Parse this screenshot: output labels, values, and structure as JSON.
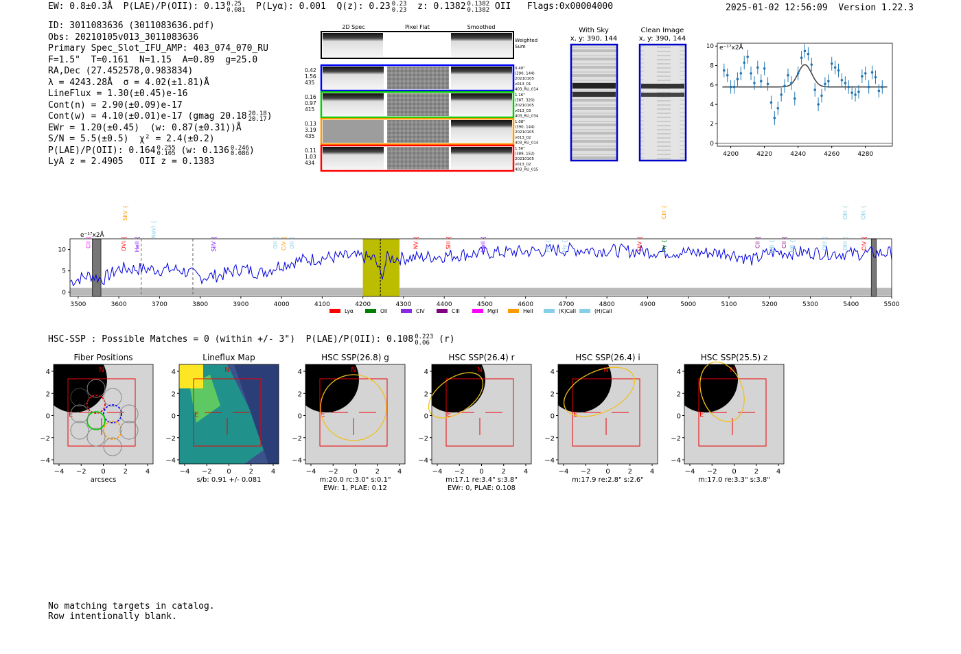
{
  "header": {
    "ew": "EW: 0.8±0.3Å",
    "plae": "P(LAE)/P(OII): 0.13",
    "plae_hi": "0.25",
    "plae_lo": "0.081",
    "plya": "P(Lyα): 0.001",
    "qz": "Q(z): 0.23",
    "qz_hi": "0.23",
    "qz_lo": "0.23",
    "z": "z: 0.1382",
    "z_hi": "0.1382",
    "z_lo": "0.1382",
    "z_line": "OII",
    "flags": "Flags:0x00004000",
    "timestamp": "2025-01-02 12:56:09",
    "version": "Version 1.22.3"
  },
  "info": {
    "id": "ID: 3011083636 (3011083636.pdf)",
    "obs": "Obs: 20210105v013_3011083636",
    "primary": "Primary Spec_Slot_IFU_AMP: 403_074_070_RU",
    "params": "F=1.5\"  T=0.161  N=1.15  A=0.89  g=25.0",
    "radec": "RA,Dec (27.452578,0.983834)",
    "lambda": "λ = 4243.28Å  σ = 4.02(±1.81)Å",
    "lineflux": "LineFlux = 1.30(±0.45)e-16",
    "contn": "Cont(n) = 2.90(±0.09)e-17",
    "contw": "Cont(w) = 4.10(±0.01)e-17 (gmag 20.18",
    "contw_hi": "20.18",
    "contw_lo": "20.17",
    "ewr": "EWr = 1.20(±0.45)  (w: 0.87(±0.31))Å",
    "sn": "S/N = 5.5(±0.5)  χ² = 2.4(±0.2)",
    "plae": "P(LAE)/P(OII): 0.164",
    "plae_hi": "0.255",
    "plae_lo": "0.105",
    "plae_w": "(w: 0.136",
    "plae_w_hi": "0.246",
    "plae_w_lo": "0.086",
    "lya": "LyA z = 2.4905   OII z = 0.1383"
  },
  "cutouts": {
    "col_labels": [
      "2D Spec",
      "Pixel Flat",
      "Smoothed"
    ],
    "weighted_sum": "Weighted\nSum",
    "rows": [
      {
        "left": [
          "0.42",
          "1.56",
          "435"
        ],
        "right": [
          "0.40\"",
          "(390, 144)",
          "20210105",
          "v013_01",
          "403_RU_014"
        ],
        "color": "#0000ff"
      },
      {
        "left": [
          "0.16",
          "0.97",
          "415"
        ],
        "right": [
          "1.16\"",
          "(387, 320)",
          "20210105",
          "v013_03",
          "403_RU_034"
        ],
        "color": "#00cc00"
      },
      {
        "left": [
          "0.13",
          "3.19",
          "435"
        ],
        "right": [
          "1.08\"",
          "(390, 144)",
          "20210105",
          "v013_02",
          "403_RU_014"
        ],
        "color": "#ff9900"
      },
      {
        "left": [
          "0.11",
          "1.03",
          "434"
        ],
        "right": [
          "1.56\"",
          "(389, 152)",
          "20210105",
          "v013_02",
          "403_RU_015"
        ],
        "color": "#ff0000"
      }
    ],
    "with_sky": "With Sky",
    "clean_image": "Clean Image",
    "xy": "x, y: 390, 144"
  },
  "zoom_chart": {
    "type": "scatter",
    "unit_label": "e⁻¹⁷x2Å",
    "xticks": [
      4200,
      4220,
      4240,
      4260,
      4280
    ],
    "yticks": [
      0,
      2,
      4,
      6,
      8,
      10
    ],
    "xlim": [
      4192,
      4296
    ],
    "ylim": [
      -0.3,
      10.3
    ]
  },
  "chart_data": [
    {
      "type": "scatter",
      "title": "",
      "ylabel": "e⁻¹⁷x2Å",
      "x": [
        4196,
        4198,
        4200,
        4202,
        4204,
        4206,
        4208,
        4210,
        4212,
        4214,
        4216,
        4218,
        4220,
        4222,
        4224,
        4226,
        4228,
        4230,
        4232,
        4234,
        4236,
        4238,
        4240,
        4242,
        4244,
        4246,
        4248,
        4250,
        4252,
        4254,
        4256,
        4258,
        4260,
        4262,
        4264,
        4266,
        4268,
        4270,
        4272,
        4274,
        4276,
        4278,
        4280,
        4282,
        4284,
        4286,
        4288,
        4290
      ],
      "y": [
        7.5,
        7.0,
        5.8,
        5.8,
        6.6,
        7.2,
        8.3,
        8.9,
        7.2,
        6.2,
        7.8,
        6.4,
        7.7,
        6.1,
        4.2,
        2.6,
        3.6,
        5.0,
        5.9,
        7.0,
        6.2,
        4.6,
        7.2,
        8.8,
        9.5,
        9.2,
        8.1,
        5.5,
        4.0,
        4.9,
        6.1,
        6.4,
        8.2,
        7.8,
        7.5,
        6.5,
        6.2,
        5.8,
        5.2,
        5.0,
        5.3,
        6.9,
        7.2,
        5.8,
        7.3,
        6.8,
        5.4,
        5.8
      ],
      "fit_peak": 4244,
      "fit_amp": 2.3,
      "fit_baseline": 5.8,
      "xlim": [
        4192,
        4296
      ],
      "ylim": [
        -0.3,
        10.3
      ]
    },
    {
      "type": "line",
      "title": "",
      "ylabel": "e⁻¹⁷x2Å",
      "xlim": [
        3480,
        5500
      ],
      "ylim": [
        -1,
        12.5
      ],
      "xticks": [
        3500,
        3600,
        3700,
        3800,
        3900,
        4000,
        4100,
        4200,
        4300,
        4400,
        4500,
        4600,
        4700,
        4800,
        4900,
        5000,
        5100,
        5200,
        5300,
        5400,
        5500
      ],
      "yticks": [
        0,
        5,
        10
      ],
      "anchors_x": [
        3480,
        3530,
        3560,
        3600,
        3650,
        3700,
        3750,
        3800,
        3850,
        3900,
        3950,
        4000,
        4050,
        4100,
        4150,
        4200,
        4230,
        4245,
        4260,
        4300,
        4400,
        4500,
        4600,
        4700,
        4800,
        4900,
        5000,
        5100,
        5160,
        5200,
        5300,
        5400,
        5500
      ],
      "anchors_y": [
        2.5,
        4,
        3,
        5.5,
        5.5,
        5.3,
        5.3,
        3.5,
        4,
        5.5,
        4.5,
        6.5,
        7.5,
        8,
        8.3,
        8.2,
        7.8,
        3.5,
        8,
        8,
        8.5,
        9.2,
        9.5,
        10,
        9.8,
        9.5,
        9.3,
        9.2,
        7.5,
        9.3,
        9.3,
        9,
        9.2
      ],
      "highlight_band": [
        4200,
        4290
      ],
      "center_line": 4243,
      "masked_bands": [
        [
          3535,
          3556
        ],
        [
          5450,
          5462
        ]
      ],
      "dashed_lines": [
        3655,
        3782
      ],
      "line_labels": [
        {
          "text": "CII",
          "x": 3530,
          "color": "#ff00ff",
          "row": 2
        },
        {
          "text": "OVI",
          "x": 3617,
          "color": "#ff0000",
          "row": 2
        },
        {
          "text": "HeII",
          "x": 3650,
          "color": "#8000ff",
          "row": 2
        },
        {
          "text": "NeVI",
          "x": 3690,
          "color": "#87ceeb",
          "row": 1
        },
        {
          "text": "SiIV",
          "x": 3620,
          "color": "#ff9900",
          "row": 0
        },
        {
          "text": "SiIV",
          "x": 3838,
          "color": "#8000ff",
          "row": 2
        },
        {
          "text": "OII",
          "x": 3990,
          "color": "#87ceeb",
          "row": 2
        },
        {
          "text": "CIV",
          "x": 4010,
          "color": "#ff9900",
          "row": 2
        },
        {
          "text": "OII",
          "x": 4030,
          "color": "#87ceeb",
          "row": 2
        },
        {
          "text": "NV",
          "x": 4335,
          "color": "#ff0000",
          "row": 2
        },
        {
          "text": "SiII",
          "x": 4415,
          "color": "#ff0000",
          "row": 2
        },
        {
          "text": "HeII",
          "x": 4500,
          "color": "#8000ff",
          "row": 2
        },
        {
          "text": "Hγ",
          "x": 4660,
          "color": "#87ceeb",
          "row": 3
        },
        {
          "text": "Hγ",
          "x": 4700,
          "color": "#87ceeb",
          "row": 3
        },
        {
          "text": "SiIV",
          "x": 4885,
          "color": "#ff0000",
          "row": 2
        },
        {
          "text": "CIII",
          "x": 4945,
          "color": "#ff9900",
          "row": 0
        },
        {
          "text": "Hγ",
          "x": 4945,
          "color": "#008000",
          "row": 3
        },
        {
          "text": "CII",
          "x": 5175,
          "color": "#800080",
          "row": 2
        },
        {
          "text": "Hβ",
          "x": 5210,
          "color": "#87ceeb",
          "row": 3
        },
        {
          "text": "CII",
          "x": 5240,
          "color": "#800080",
          "row": 2
        },
        {
          "text": "Hβ",
          "x": 5260,
          "color": "#87ceeb",
          "row": 3
        },
        {
          "text": "OIII",
          "x": 5340,
          "color": "#87ceeb",
          "row": 2
        },
        {
          "text": "OIII",
          "x": 5390,
          "color": "#87ceeb",
          "row": 0
        },
        {
          "text": "OIII",
          "x": 5435,
          "color": "#87ceeb",
          "row": 0
        },
        {
          "text": "OIII",
          "x": 5390,
          "color": "#87ceeb",
          "row": 2
        },
        {
          "text": "CIV",
          "x": 5437,
          "color": "#ff0000",
          "row": 2
        }
      ],
      "legend": [
        {
          "label": "Lyα",
          "color": "#ff0000"
        },
        {
          "label": "OII",
          "color": "#008000"
        },
        {
          "label": "CIV",
          "color": "#8a2be2"
        },
        {
          "label": "CIII",
          "color": "#800080"
        },
        {
          "label": "MgII",
          "color": "#ff00ff"
        },
        {
          "label": "HeII",
          "color": "#ff9900"
        },
        {
          "label": "(K)CaII",
          "color": "#87ceeb"
        },
        {
          "label": "(H)CaII",
          "color": "#87ceeb"
        }
      ],
      "unit_label": "e⁻¹⁷x2Å"
    }
  ],
  "hsc": {
    "line": "HSC-SSP : Possible Matches = 0 (within +/- 3\")  P(LAE)/P(OII): 0.108",
    "p_hi": "0.223",
    "p_lo": "0.06",
    "band": "(r)",
    "panels": [
      {
        "title": "Fiber Positions",
        "xlabel": "arcsecs",
        "sub2": ""
      },
      {
        "title": "Lineflux Map",
        "xlabel": "s/b: 0.91 +/- 0.081",
        "sub2": ""
      },
      {
        "title": "HSC SSP(26.8) g",
        "xlabel": "m:20.0 rc:3.0\"  s:0.1\"",
        "sub2": "EWr: 1, PLAE: 0.12"
      },
      {
        "title": "HSC SSP(26.4) r",
        "xlabel": "m:17.1  re:3.4\"  s:3.8\"",
        "sub2": "EWr: 0, PLAE: 0.108"
      },
      {
        "title": "HSC SSP(26.4) i",
        "xlabel": "m:17.9  re:2.8\"  s:2.6\"",
        "sub2": ""
      },
      {
        "title": "HSC SSP(25.5) z",
        "xlabel": "m:17.0  re:3.3\"  s:3.8\"",
        "sub2": ""
      }
    ],
    "ticks": [
      "−4",
      "−2",
      "0",
      "2",
      "4"
    ],
    "compass_n": "N",
    "compass_e": "E"
  },
  "footer": {
    "line1": "No matching targets in catalog.",
    "line2": "Row intentionally blank."
  }
}
